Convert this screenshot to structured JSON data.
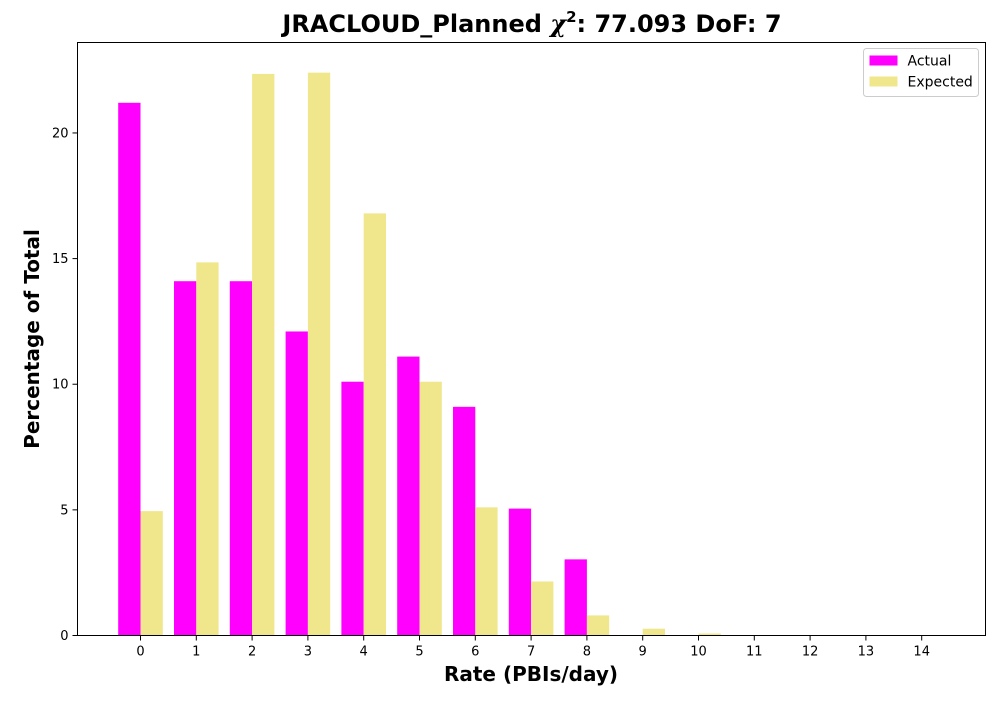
{
  "chart_data": {
    "type": "bar",
    "title": {
      "prefix": "JRACLOUD_Planned ",
      "symbol": "χ",
      "superscript": "2",
      "suffix": ": 77.093 DoF: 7"
    },
    "xlabel": "Rate (PBIs/day)",
    "ylabel": "Percentage of Total",
    "categories": [
      "0",
      "1",
      "2",
      "3",
      "4",
      "5",
      "6",
      "7",
      "8",
      "9",
      "10",
      "11",
      "12",
      "13",
      "14"
    ],
    "series": [
      {
        "name": "Actual",
        "color": "#ff00ff",
        "values": [
          21.2,
          14.1,
          14.1,
          12.1,
          10.1,
          11.1,
          9.1,
          5.05,
          3.03,
          0,
          0,
          0,
          0,
          0,
          0
        ]
      },
      {
        "name": "Expected",
        "color": "#f0e68c",
        "values": [
          4.95,
          14.85,
          22.35,
          22.4,
          16.8,
          10.1,
          5.1,
          2.15,
          0.8,
          0.27,
          0.08,
          0.02,
          0.005,
          0.001,
          0.0002
        ]
      }
    ],
    "ylim": [
      0,
      23.6
    ],
    "yticks": [
      0,
      5,
      10,
      15,
      20
    ],
    "legend_position": "top-right",
    "grid": false
  }
}
